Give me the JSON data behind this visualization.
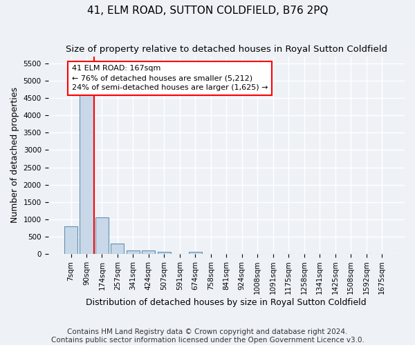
{
  "title": "41, ELM ROAD, SUTTON COLDFIELD, B76 2PQ",
  "subtitle": "Size of property relative to detached houses in Royal Sutton Coldfield",
  "xlabel": "Distribution of detached houses by size in Royal Sutton Coldfield",
  "ylabel": "Number of detached properties",
  "footer_line1": "Contains HM Land Registry data © Crown copyright and database right 2024.",
  "footer_line2": "Contains public sector information licensed under the Open Government Licence v3.0.",
  "bin_labels": [
    "7sqm",
    "90sqm",
    "174sqm",
    "257sqm",
    "341sqm",
    "424sqm",
    "507sqm",
    "591sqm",
    "674sqm",
    "758sqm",
    "841sqm",
    "924sqm",
    "1008sqm",
    "1091sqm",
    "1175sqm",
    "1258sqm",
    "1341sqm",
    "1425sqm",
    "1508sqm",
    "1592sqm",
    "1675sqm"
  ],
  "bar_values": [
    800,
    5212,
    1050,
    300,
    100,
    100,
    50,
    0,
    50,
    0,
    0,
    0,
    0,
    0,
    0,
    0,
    0,
    0,
    0,
    0,
    0
  ],
  "bar_color": "#c8d8e8",
  "bar_edge_color": "#6090b0",
  "vline_color": "red",
  "vline_x": 1.5,
  "annotation_text": "41 ELM ROAD: 167sqm\n← 76% of detached houses are smaller (5,212)\n24% of semi-detached houses are larger (1,625) →",
  "annotation_box_facecolor": "white",
  "annotation_box_edgecolor": "red",
  "ylim_max": 5700,
  "yticks": [
    0,
    500,
    1000,
    1500,
    2000,
    2500,
    3000,
    3500,
    4000,
    4500,
    5000,
    5500
  ],
  "background_color": "#eef2f7",
  "plot_bg_color": "#eef2f7",
  "grid_color": "white",
  "title_fontsize": 11,
  "subtitle_fontsize": 9.5,
  "xlabel_fontsize": 9,
  "ylabel_fontsize": 9,
  "tick_fontsize": 7.5,
  "annotation_fontsize": 8,
  "footer_fontsize": 7.5
}
